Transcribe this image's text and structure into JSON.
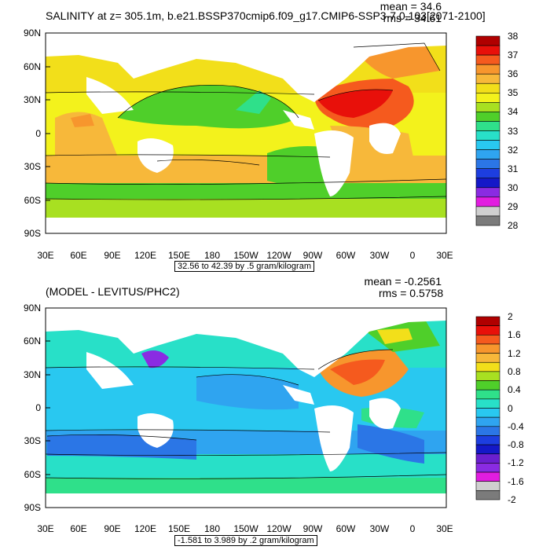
{
  "panels": [
    {
      "title": "SALINITY at z= 305.1m, b.e21.BSSP370cmip6.f09_g17.CMIP6-SSP3-7.0.103[2071-2100]",
      "stats": {
        "mean": "mean = 34.6",
        "rms": "rms = 34.61"
      },
      "range_label": "32.56 to 42.39 by .5 gram/kilogram",
      "lat_labels": [
        "90N",
        "60N",
        "30N",
        "0",
        "30S",
        "60S",
        "90S"
      ],
      "lon_labels": [
        "30E",
        "60E",
        "90E",
        "120E",
        "150E",
        "180",
        "150W",
        "120W",
        "90W",
        "60W",
        "30W",
        "0",
        "30E"
      ],
      "colorbar": {
        "labels": [
          "38",
          "37",
          "36",
          "35",
          "34",
          "33",
          "32",
          "31",
          "30",
          "29",
          "28"
        ],
        "colors": [
          "#b00000",
          "#e8100a",
          "#f55a1e",
          "#f7962d",
          "#f7b83a",
          "#f2df1a",
          "#f3f21c",
          "#a8e021",
          "#4fcf2a",
          "#2fe08a",
          "#28e0c8",
          "#29c8f0",
          "#2fa4f0",
          "#2b76e6",
          "#1d3ee0",
          "#1418c8",
          "#8a2be2",
          "#e21de0",
          "#cfcfcf",
          "#7b7b7b"
        ]
      }
    },
    {
      "title": "(MODEL - LEVITUS/PHC2)",
      "stats": {
        "mean": "mean = -0.2561",
        "rms": "rms = 0.5758"
      },
      "range_label": "-1.581 to 3.989 by .2 gram/kilogram",
      "lat_labels": [
        "90N",
        "60N",
        "30N",
        "0",
        "30S",
        "60S",
        "90S"
      ],
      "lon_labels": [
        "30E",
        "60E",
        "90E",
        "120E",
        "150E",
        "180",
        "150W",
        "120W",
        "90W",
        "60W",
        "30W",
        "0",
        "30E"
      ],
      "colorbar": {
        "labels": [
          "2",
          "1.6",
          "1.2",
          "0.8",
          "0.4",
          "0",
          "-0.4",
          "-0.8",
          "-1.2",
          "-1.6",
          "-2"
        ],
        "colors": [
          "#b00000",
          "#e8100a",
          "#f55a1e",
          "#f7962d",
          "#f7b83a",
          "#f2df1a",
          "#a8e021",
          "#4fcf2a",
          "#2fe08a",
          "#28e0c8",
          "#29c8f0",
          "#2fa4f0",
          "#2b76e6",
          "#1d3ee0",
          "#1418c8",
          "#6a1fcf",
          "#8a2be2",
          "#e21de0",
          "#cfcfcf",
          "#7b7b7b"
        ]
      }
    }
  ]
}
